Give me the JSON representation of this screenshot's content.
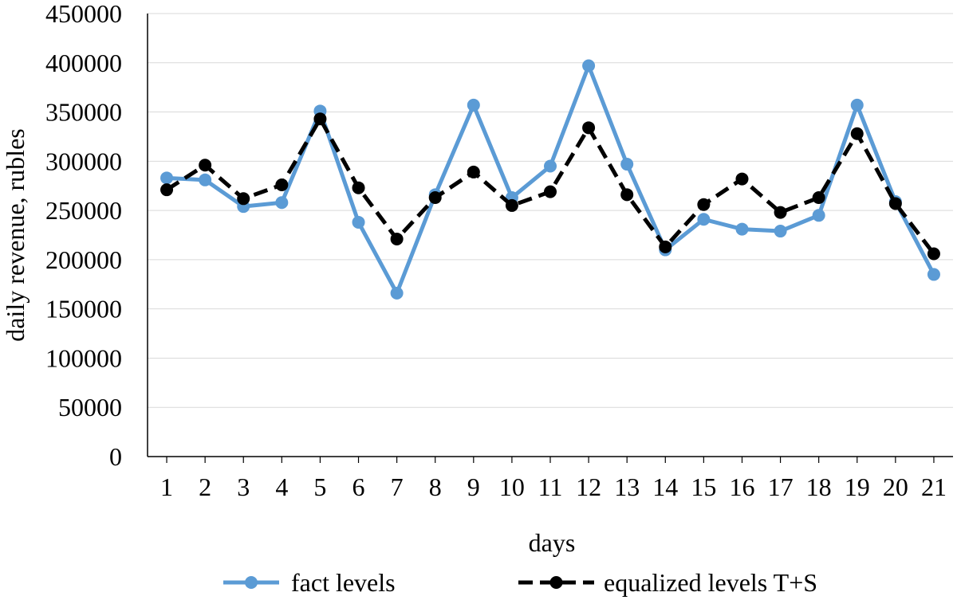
{
  "chart_data": {
    "type": "line",
    "title": "",
    "xlabel": "days",
    "ylabel": "daily revenue, rubles",
    "ylim": [
      0,
      450000
    ],
    "yticks": [
      0,
      50000,
      100000,
      150000,
      200000,
      250000,
      300000,
      350000,
      400000,
      450000
    ],
    "grid": true,
    "legend_position": "bottom",
    "categories": [
      "1",
      "2",
      "3",
      "4",
      "5",
      "6",
      "7",
      "8",
      "9",
      "10",
      "11",
      "12",
      "13",
      "14",
      "15",
      "16",
      "17",
      "18",
      "19",
      "20",
      "21"
    ],
    "series": [
      {
        "name": "fact levels",
        "color": "#5b9bd5",
        "style": "solid",
        "values": [
          283000,
          281000,
          254000,
          258000,
          351000,
          238000,
          166000,
          266000,
          357000,
          263000,
          295000,
          397000,
          297000,
          210000,
          241000,
          231000,
          229000,
          245000,
          357000,
          259000,
          185000
        ]
      },
      {
        "name": "equalized levels T+S",
        "color": "#000000",
        "style": "dashed",
        "values": [
          271000,
          296000,
          262000,
          276000,
          343000,
          273000,
          221000,
          263000,
          289000,
          255000,
          269000,
          334000,
          266000,
          213000,
          256000,
          282000,
          248000,
          263000,
          328000,
          257000,
          206000
        ]
      }
    ]
  }
}
